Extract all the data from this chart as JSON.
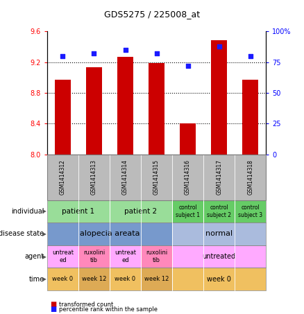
{
  "title": "GDS5275 / 225008_at",
  "samples": [
    "GSM1414312",
    "GSM1414313",
    "GSM1414314",
    "GSM1414315",
    "GSM1414316",
    "GSM1414317",
    "GSM1414318"
  ],
  "transformed_count": [
    8.97,
    9.13,
    9.27,
    9.19,
    8.4,
    9.49,
    8.97
  ],
  "percentile_rank": [
    80,
    82,
    85,
    82,
    72,
    88,
    80
  ],
  "ylim_left": [
    8.0,
    9.6
  ],
  "ylim_right": [
    0,
    100
  ],
  "yticks_left": [
    8.0,
    8.4,
    8.8,
    9.2,
    9.6
  ],
  "yticks_right": [
    0,
    25,
    50,
    75,
    100
  ],
  "bar_color": "#cc0000",
  "dot_color": "#1a1aff",
  "annotation_rows": [
    {
      "label": "individual",
      "cells": [
        {
          "text": "patient 1",
          "span": 2,
          "color": "#99dd99",
          "fontsize": 7.5
        },
        {
          "text": "patient 2",
          "span": 2,
          "color": "#99dd99",
          "fontsize": 7.5
        },
        {
          "text": "control\nsubject 1",
          "span": 1,
          "color": "#66cc66",
          "fontsize": 5.5
        },
        {
          "text": "control\nsubject 2",
          "span": 1,
          "color": "#66cc66",
          "fontsize": 5.5
        },
        {
          "text": "control\nsubject 3",
          "span": 1,
          "color": "#66cc66",
          "fontsize": 5.5
        }
      ]
    },
    {
      "label": "disease state",
      "cells": [
        {
          "text": "alopecia areata",
          "span": 4,
          "color": "#7799cc",
          "fontsize": 8
        },
        {
          "text": "normal",
          "span": 3,
          "color": "#aabbdd",
          "fontsize": 8
        }
      ]
    },
    {
      "label": "agent",
      "cells": [
        {
          "text": "untreat\ned",
          "span": 1,
          "color": "#ffaaff",
          "fontsize": 6
        },
        {
          "text": "ruxolini\ntib",
          "span": 1,
          "color": "#ff88bb",
          "fontsize": 6
        },
        {
          "text": "untreat\ned",
          "span": 1,
          "color": "#ffaaff",
          "fontsize": 6
        },
        {
          "text": "ruxolini\ntib",
          "span": 1,
          "color": "#ff88bb",
          "fontsize": 6
        },
        {
          "text": "untreated",
          "span": 3,
          "color": "#ffaaff",
          "fontsize": 7
        }
      ]
    },
    {
      "label": "time",
      "cells": [
        {
          "text": "week 0",
          "span": 1,
          "color": "#f0c060",
          "fontsize": 6
        },
        {
          "text": "week 12",
          "span": 1,
          "color": "#ddaa55",
          "fontsize": 6
        },
        {
          "text": "week 0",
          "span": 1,
          "color": "#f0c060",
          "fontsize": 6
        },
        {
          "text": "week 12",
          "span": 1,
          "color": "#ddaa55",
          "fontsize": 6
        },
        {
          "text": "week 0",
          "span": 3,
          "color": "#f0c060",
          "fontsize": 7
        }
      ]
    }
  ],
  "legend": [
    {
      "color": "#cc0000",
      "label": "transformed count"
    },
    {
      "color": "#1a1aff",
      "label": "percentile rank within the sample"
    }
  ],
  "sample_bg_color": "#bbbbbb",
  "fig_bg_color": "#ffffff"
}
